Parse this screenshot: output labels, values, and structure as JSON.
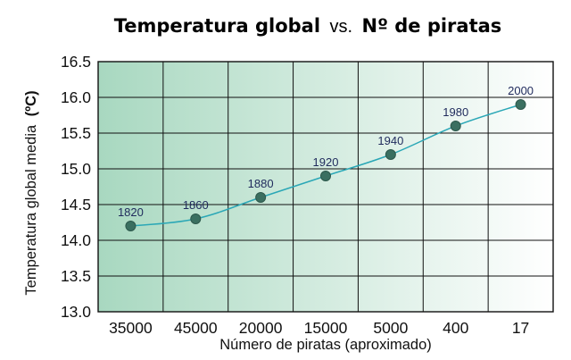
{
  "chart_data": {
    "type": "line",
    "title": {
      "bold1": "Temperatura global",
      "normal": "vs.",
      "bold2": "Nº de piratas"
    },
    "xlabel": "Número de piratas (aproximado)",
    "ylabel": {
      "text": "Temperatura global media",
      "unit": "(ºC)"
    },
    "categories": [
      "35000",
      "45000",
      "20000",
      "15000",
      "5000",
      "400",
      "17"
    ],
    "series": [
      {
        "values": [
          14.2,
          14.3,
          14.6,
          14.9,
          15.2,
          15.6,
          15.9
        ],
        "point_labels": [
          "1820",
          "1860",
          "1880",
          "1920",
          "1940",
          "1980",
          "2000"
        ]
      }
    ],
    "ylim": [
      13.0,
      16.5
    ],
    "yticks": [
      "13.0",
      "13.5",
      "14.0",
      "14.5",
      "15.0",
      "15.5",
      "16.0",
      "16.5"
    ],
    "grid": true,
    "background_gradient": [
      "#a8d8c0",
      "#ffffff"
    ],
    "line_color": "#2aa7b6",
    "marker_color": "#3a6f60",
    "label_color": "#1f2a5c"
  }
}
